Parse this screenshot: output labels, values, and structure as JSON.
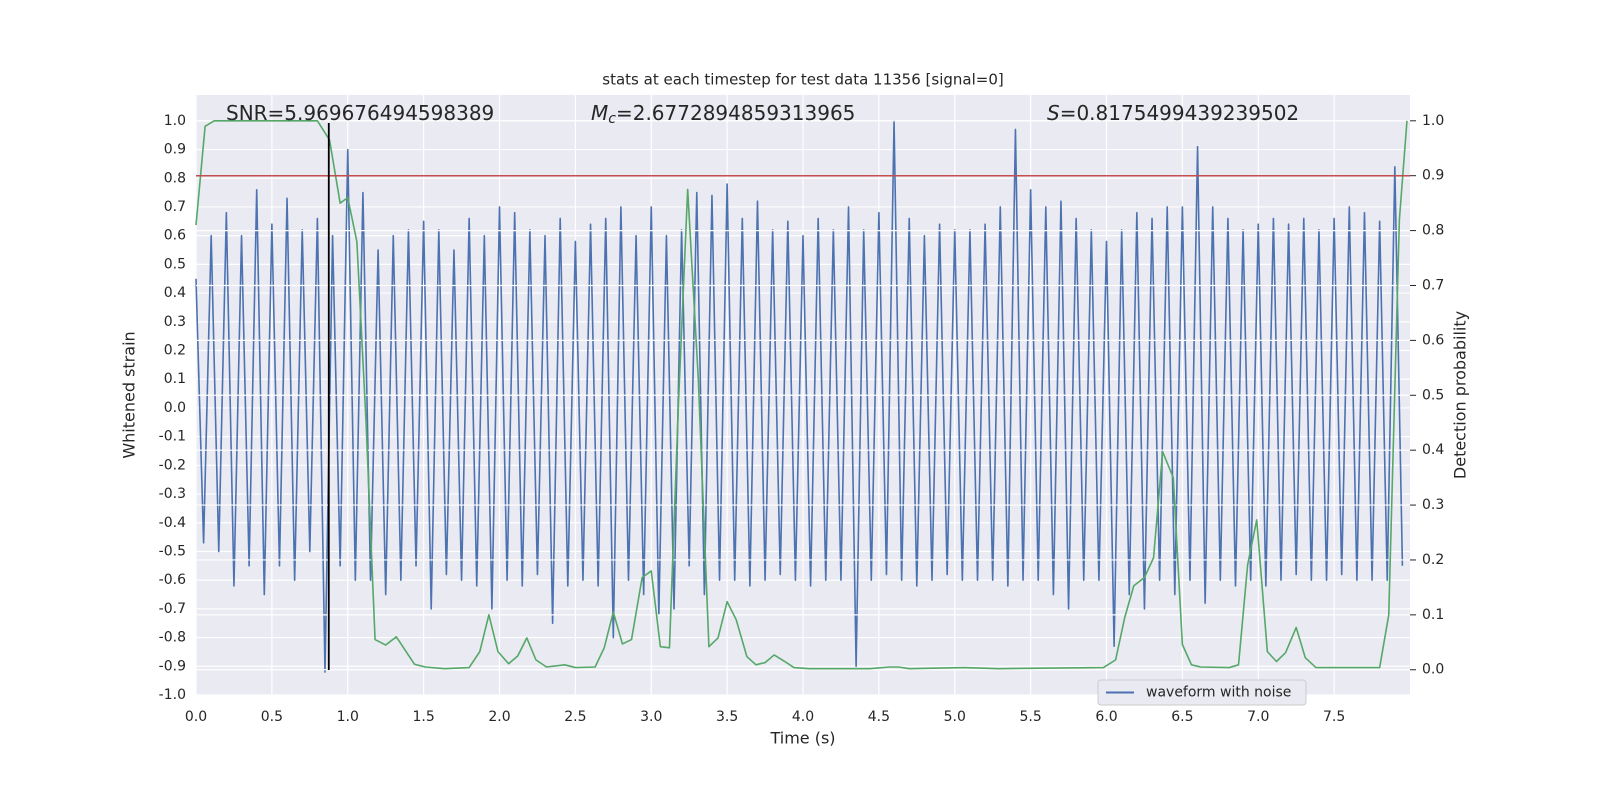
{
  "chart_data": {
    "type": "line",
    "title": "stats at each timestep for test data 11356 [signal=0]",
    "xlabel": "Time (s)",
    "ylabel": "Whitened strain",
    "y2label": "Detection probability",
    "annotations": [
      {
        "text": "SNR=5.969676494598389"
      },
      {
        "symbol": "M",
        "subscript": "c",
        "text": "=2.6772894859313965"
      },
      {
        "symbol": "S",
        "text": "=0.8175499439239502"
      }
    ],
    "xlim": [
      0,
      8.0
    ],
    "ylim": [
      -1.0,
      1.09
    ],
    "y2lim": [
      -0.046,
      1.047
    ],
    "xticks": [
      {
        "value": 0,
        "label": "0.0"
      },
      0.5,
      {
        "value": 1,
        "label": "1.0"
      },
      1.5,
      {
        "value": 2,
        "label": "2.0"
      },
      2.5,
      {
        "value": 3,
        "label": "3.0"
      },
      3.5,
      {
        "value": 4,
        "label": "4.0"
      },
      4.5,
      {
        "value": 5,
        "label": "5.0"
      },
      5.5,
      {
        "value": 6,
        "label": "6.0"
      },
      6.5,
      {
        "value": 7,
        "label": "7.0"
      },
      7.5
    ],
    "yticks": [
      {
        "value": -1,
        "label": "-1.0"
      },
      -0.9,
      -0.8,
      -0.7,
      -0.6,
      -0.5,
      -0.4,
      -0.3,
      -0.2,
      -0.1,
      {
        "value": 0,
        "label": "0.0"
      },
      0.1,
      0.2,
      0.3,
      0.4,
      0.5,
      0.6,
      0.7,
      0.8,
      0.9,
      {
        "value": 1,
        "label": "1.0"
      }
    ],
    "y2ticks": [
      {
        "value": 0,
        "label": "0.0"
      },
      0.1,
      0.2,
      0.3,
      0.4,
      0.5,
      0.6,
      0.7,
      0.8,
      0.9,
      {
        "value": 1,
        "label": "1.0"
      }
    ],
    "grid": true,
    "legend": "lower right",
    "series": [
      {
        "name": "waveform with noise",
        "color": "#4c72b0",
        "x": [
          0,
          0.05,
          0.1,
          0.15,
          0.2,
          0.25,
          0.3,
          0.35,
          0.4,
          0.45,
          0.5,
          0.55,
          0.6,
          0.65,
          0.7,
          0.75,
          0.8,
          0.85,
          0.9,
          0.95,
          1.0,
          1.05,
          1.1,
          1.15,
          1.2,
          1.25,
          1.3,
          1.35,
          1.4,
          1.45,
          1.5,
          1.55,
          1.6,
          1.65,
          1.7,
          1.75,
          1.8,
          1.85,
          1.9,
          1.95,
          2.0,
          2.05,
          2.1,
          2.15,
          2.2,
          2.25,
          2.3,
          2.35,
          2.4,
          2.45,
          2.5,
          2.55,
          2.6,
          2.65,
          2.7,
          2.75,
          2.8,
          2.85,
          2.9,
          2.95,
          3.0,
          3.05,
          3.1,
          3.15,
          3.2,
          3.25,
          3.3,
          3.35,
          3.4,
          3.45,
          3.5,
          3.55,
          3.6,
          3.65,
          3.7,
          3.75,
          3.8,
          3.85,
          3.9,
          3.95,
          4.0,
          4.05,
          4.1,
          4.15,
          4.2,
          4.25,
          4.3,
          4.35,
          4.4,
          4.45,
          4.5,
          4.55,
          4.6,
          4.65,
          4.7,
          4.75,
          4.8,
          4.85,
          4.9,
          4.95,
          5.0,
          5.05,
          5.1,
          5.15,
          5.2,
          5.25,
          5.3,
          5.35,
          5.4,
          5.45,
          5.5,
          5.55,
          5.6,
          5.65,
          5.7,
          5.75,
          5.8,
          5.85,
          5.9,
          5.95,
          6.0,
          6.05,
          6.1,
          6.15,
          6.2,
          6.25,
          6.3,
          6.35,
          6.4,
          6.45,
          6.5,
          6.55,
          6.6,
          6.65,
          6.7,
          6.75,
          6.8,
          6.85,
          6.9,
          6.95,
          7.0,
          7.05,
          7.1,
          7.15,
          7.2,
          7.25,
          7.3,
          7.35,
          7.4,
          7.45,
          7.5,
          7.55,
          7.6,
          7.65,
          7.7,
          7.75,
          7.8,
          7.85,
          7.9,
          7.95
        ],
        "values": [
          0.45,
          -0.47,
          0.6,
          -0.5,
          0.68,
          -0.62,
          0.6,
          -0.55,
          0.76,
          -0.65,
          0.64,
          -0.55,
          0.73,
          -0.6,
          0.62,
          -0.5,
          0.66,
          -0.92,
          0.6,
          -0.55,
          0.9,
          -0.6,
          0.75,
          -0.6,
          0.55,
          -0.65,
          0.6,
          -0.6,
          0.62,
          -0.55,
          0.65,
          -0.7,
          0.62,
          -0.58,
          0.55,
          -0.6,
          0.66,
          -0.62,
          0.6,
          -0.7,
          0.7,
          -0.6,
          0.68,
          -0.62,
          0.62,
          -0.58,
          0.6,
          -0.75,
          0.66,
          -0.62,
          0.58,
          -0.6,
          0.64,
          -0.62,
          0.66,
          -0.8,
          0.7,
          -0.6,
          0.6,
          -0.65,
          0.7,
          -0.72,
          0.6,
          -0.7,
          0.62,
          -0.55,
          0.75,
          -0.65,
          0.74,
          -0.6,
          0.78,
          -0.6,
          0.66,
          -0.62,
          0.72,
          -0.6,
          0.62,
          -0.58,
          0.65,
          -0.6,
          0.6,
          -0.62,
          0.66,
          -0.6,
          0.62,
          -0.6,
          0.7,
          -0.9,
          0.62,
          -0.6,
          0.68,
          -0.58,
          1.0,
          -0.6,
          0.66,
          -0.62,
          0.6,
          -0.6,
          0.64,
          -0.58,
          0.62,
          -0.6,
          0.62,
          -0.6,
          0.64,
          -0.6,
          0.7,
          -0.62,
          0.97,
          -0.6,
          0.76,
          -0.6,
          0.7,
          -0.65,
          0.72,
          -0.7,
          0.66,
          -0.6,
          0.62,
          -0.6,
          0.58,
          -0.83,
          0.62,
          -0.65,
          0.68,
          -0.7,
          0.66,
          -0.6,
          0.7,
          -0.65,
          0.7,
          -0.6,
          0.91,
          -0.68,
          0.7,
          -0.6,
          0.66,
          -0.62,
          0.62,
          -0.6,
          0.64,
          -0.62,
          0.66,
          -0.6,
          0.64,
          -0.58,
          0.66,
          -0.6,
          0.62,
          -0.6,
          0.66,
          -0.58,
          0.7,
          -0.6,
          0.68,
          -0.6,
          0.65,
          -0.6,
          0.84,
          -0.55
        ]
      },
      {
        "color": "#55a868",
        "axis": "y2",
        "x": [
          0,
          0.06,
          0.12,
          0.8,
          0.88,
          0.95,
          1.0,
          1.06,
          1.12,
          1.18,
          1.25,
          1.32,
          1.38,
          1.44,
          1.51,
          1.64,
          1.8,
          1.87,
          1.93,
          1.99,
          2.06,
          2.12,
          2.18,
          2.24,
          2.31,
          2.43,
          2.5,
          2.63,
          2.69,
          2.75,
          2.81,
          2.87,
          2.94,
          3.0,
          3.06,
          3.12,
          3.18,
          3.24,
          3.31,
          3.38,
          3.44,
          3.5,
          3.56,
          3.63,
          3.69,
          3.75,
          3.81,
          3.88,
          3.94,
          4.04,
          4.44,
          4.57,
          4.63,
          4.7,
          5.06,
          5.29,
          5.98,
          6.06,
          6.12,
          6.18,
          6.25,
          6.31,
          6.37,
          6.44,
          6.5,
          6.56,
          6.62,
          6.81,
          6.87,
          6.93,
          6.99,
          7.06,
          7.12,
          7.18,
          7.25,
          7.31,
          7.38,
          7.8,
          7.86,
          7.93,
          7.98
        ],
        "values": [
          0.81,
          0.99,
          1.0,
          1.0,
          0.965,
          0.85,
          0.86,
          0.78,
          0.455,
          0.055,
          0.045,
          0.06,
          0.035,
          0.01,
          0.005,
          0.002,
          0.004,
          0.033,
          0.1,
          0.033,
          0.011,
          0.025,
          0.058,
          0.018,
          0.005,
          0.009,
          0.004,
          0.005,
          0.04,
          0.105,
          0.047,
          0.055,
          0.168,
          0.18,
          0.042,
          0.04,
          0.49,
          0.875,
          0.53,
          0.042,
          0.058,
          0.124,
          0.091,
          0.024,
          0.009,
          0.013,
          0.027,
          0.015,
          0.004,
          0.002,
          0.002,
          0.005,
          0.005,
          0.002,
          0.004,
          0.002,
          0.004,
          0.018,
          0.095,
          0.153,
          0.168,
          0.204,
          0.397,
          0.35,
          0.046,
          0.009,
          0.005,
          0.004,
          0.009,
          0.191,
          0.273,
          0.033,
          0.015,
          0.031,
          0.077,
          0.022,
          0.004,
          0.004,
          0.1,
          0.82,
          1.0
        ]
      }
    ],
    "hlines": [
      {
        "y": 0.9,
        "axis": "y2",
        "color": "#c44e52"
      }
    ],
    "vlines": [
      {
        "x": 0.875,
        "color": "#000000"
      }
    ]
  }
}
